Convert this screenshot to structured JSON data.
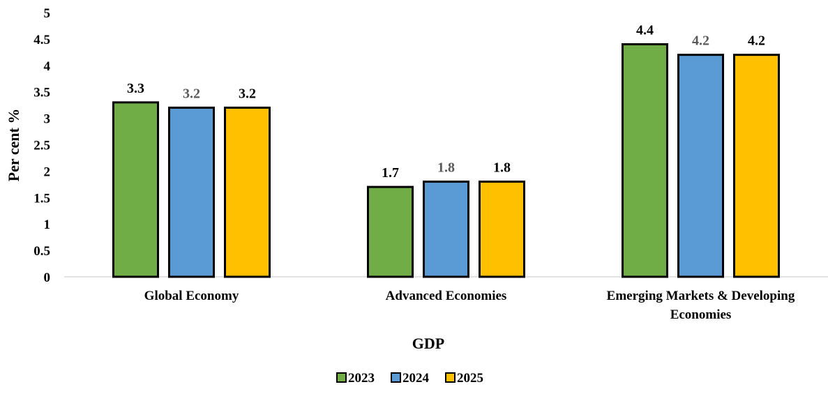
{
  "chart_data": {
    "type": "bar",
    "title": "",
    "xlabel": "GDP",
    "ylabel": "Per cent %",
    "ylim": [
      0,
      5
    ],
    "yticks": [
      "0",
      "0.5",
      "1",
      "1.5",
      "2",
      "2.5",
      "3",
      "3.5",
      "4",
      "4.5",
      "5"
    ],
    "categories": [
      [
        "Global Economy"
      ],
      [
        "Advanced Economies"
      ],
      [
        "Emerging Markets & Developing",
        "Economies"
      ]
    ],
    "series": [
      {
        "name": "2023",
        "color": "#70ad47",
        "label_color": "#000000",
        "values": [
          3.3,
          1.7,
          4.4
        ],
        "labels": [
          "3.3",
          "1.7",
          "4.4"
        ]
      },
      {
        "name": "2024",
        "color": "#5b9bd5",
        "label_color": "#595959",
        "values": [
          3.2,
          1.8,
          4.2
        ],
        "labels": [
          "3.2",
          "1.8",
          "4.2"
        ]
      },
      {
        "name": "2025",
        "color": "#ffc000",
        "label_color": "#000000",
        "values": [
          3.2,
          1.8,
          4.2
        ],
        "labels": [
          "3.2",
          "1.8",
          "4.2"
        ]
      }
    ],
    "grid": false,
    "legend_position": "bottom"
  }
}
